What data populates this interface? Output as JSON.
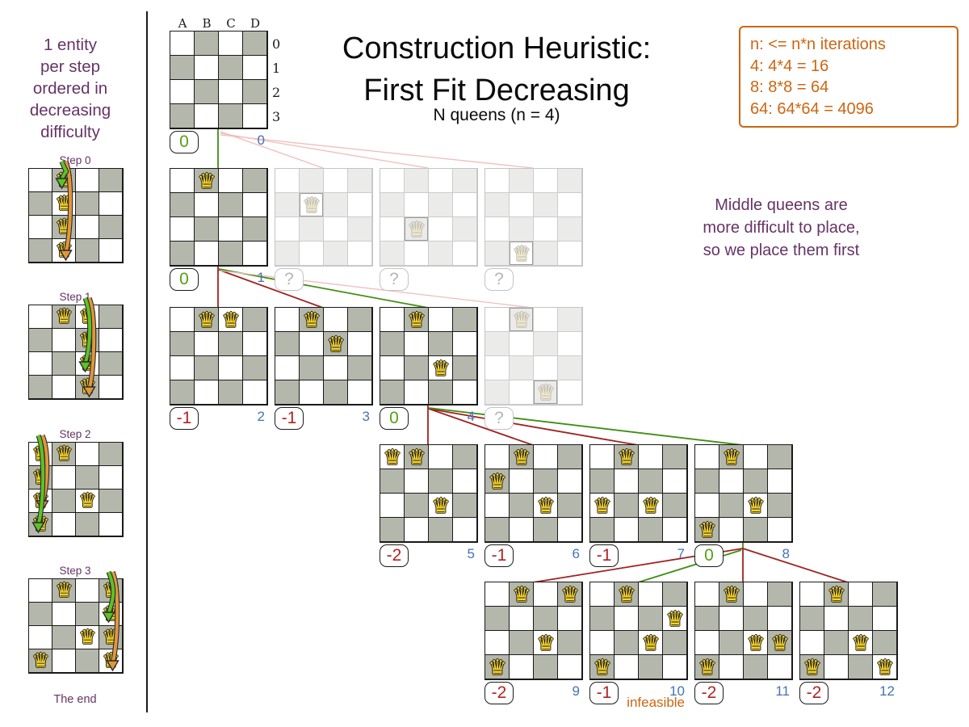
{
  "title": {
    "line1": "Construction Heuristic:",
    "line2": "First Fit Decreasing",
    "subtitle": "N queens (n = 4)"
  },
  "info_box": {
    "lines": [
      "n: <= n*n iterations",
      "4: 4*4 = 16",
      "8: 8*8 = 64",
      "64: 64*64 = 4096"
    ]
  },
  "note": {
    "lines": [
      "Middle queens are",
      "more difficult to place,",
      "so we place them first"
    ]
  },
  "sidebar": {
    "intro_lines": [
      "1 entity",
      "per step",
      "ordered in",
      "decreasing",
      "difficulty"
    ],
    "steps": [
      {
        "label": "Step 0",
        "fixed_queens": [],
        "trial_col": 1,
        "selected_row": 0,
        "orange_end_row": 3
      },
      {
        "label": "Step 1",
        "fixed_queens": [
          [
            1,
            0
          ]
        ],
        "trial_col": 2,
        "selected_row": 2,
        "orange_end_row": 3
      },
      {
        "label": "Step 2",
        "fixed_queens": [
          [
            1,
            0
          ],
          [
            2,
            2
          ]
        ],
        "trial_col": 0,
        "selected_row": 3,
        "orange_end_row": 2
      },
      {
        "label": "Step 3",
        "fixed_queens": [
          [
            1,
            0
          ],
          [
            2,
            2
          ],
          [
            0,
            3
          ]
        ],
        "trial_col": 3,
        "selected_row": 1,
        "orange_end_row": 3
      }
    ],
    "end_label": "The end"
  },
  "board_labels": {
    "columns": [
      "A",
      "B",
      "C",
      "D"
    ],
    "rows": [
      "0",
      "1",
      "2",
      "3"
    ]
  },
  "tree": {
    "rows": [
      {
        "boards": [
          {
            "queens": [],
            "score": "0",
            "score_color": "green",
            "iteration": "0",
            "labels": true
          }
        ]
      },
      {
        "boards": [
          {
            "queens": [
              [
                1,
                0
              ]
            ],
            "score": "0",
            "score_color": "green",
            "iteration": "1"
          },
          {
            "queens": [
              [
                1,
                1
              ]
            ],
            "faded": true,
            "score": "?"
          },
          {
            "queens": [
              [
                1,
                2
              ]
            ],
            "faded": true,
            "score": "?"
          },
          {
            "queens": [
              [
                1,
                3
              ]
            ],
            "faded": true,
            "score": "?"
          }
        ]
      },
      {
        "boards": [
          {
            "queens": [
              [
                1,
                0
              ],
              [
                2,
                0
              ]
            ],
            "score": "-1",
            "score_color": "red",
            "iteration": "2"
          },
          {
            "queens": [
              [
                1,
                0
              ],
              [
                2,
                1
              ]
            ],
            "score": "-1",
            "score_color": "red",
            "iteration": "3"
          },
          {
            "queens": [
              [
                1,
                0
              ],
              [
                2,
                2
              ]
            ],
            "score": "0",
            "score_color": "green",
            "iteration": "4"
          },
          {
            "queens": [
              [
                1,
                0
              ],
              [
                2,
                3
              ]
            ],
            "faded": true,
            "score": "?"
          }
        ]
      },
      {
        "boards": [
          {
            "queens": [
              [
                0,
                0
              ],
              [
                1,
                0
              ],
              [
                2,
                2
              ]
            ],
            "score": "-2",
            "score_color": "red",
            "iteration": "5"
          },
          {
            "queens": [
              [
                1,
                0
              ],
              [
                0,
                1
              ],
              [
                2,
                2
              ]
            ],
            "score": "-1",
            "score_color": "red",
            "iteration": "6"
          },
          {
            "queens": [
              [
                1,
                0
              ],
              [
                0,
                2
              ],
              [
                2,
                2
              ]
            ],
            "score": "-1",
            "score_color": "red",
            "iteration": "7"
          },
          {
            "queens": [
              [
                1,
                0
              ],
              [
                2,
                2
              ],
              [
                0,
                3
              ]
            ],
            "score": "0",
            "score_color": "green",
            "iteration": "8"
          }
        ]
      },
      {
        "boards": [
          {
            "queens": [
              [
                1,
                0
              ],
              [
                3,
                0
              ],
              [
                2,
                2
              ],
              [
                0,
                3
              ]
            ],
            "score": "-2",
            "score_color": "red",
            "iteration": "9"
          },
          {
            "queens": [
              [
                1,
                0
              ],
              [
                3,
                1
              ],
              [
                2,
                2
              ],
              [
                0,
                3
              ]
            ],
            "score": "-1",
            "score_color": "red",
            "iteration": "10",
            "infeasible": true
          },
          {
            "queens": [
              [
                1,
                0
              ],
              [
                2,
                2
              ],
              [
                3,
                2
              ],
              [
                0,
                3
              ]
            ],
            "score": "-2",
            "score_color": "red",
            "iteration": "11"
          },
          {
            "queens": [
              [
                1,
                0
              ],
              [
                2,
                2
              ],
              [
                0,
                3
              ],
              [
                3,
                3
              ]
            ],
            "score": "-2",
            "score_color": "red",
            "iteration": "12"
          }
        ]
      }
    ]
  },
  "infeasible_label": "infeasible",
  "colors": {
    "purple": "#663366",
    "orange": "#cc6611",
    "green": "#55a016",
    "red": "#b22222",
    "blue": "#4472b8",
    "cellgray": "#b4b7ab",
    "fadedgray": "#ebebe9",
    "gold": "#f6d32b",
    "fadedgold": "#f1e9c8",
    "line_green": "#3f8f12",
    "line_darkred": "#a12121",
    "line_pink": "#f0bcbc",
    "arrow_green": "#5cc226",
    "arrow_orange": "#e2973a"
  }
}
